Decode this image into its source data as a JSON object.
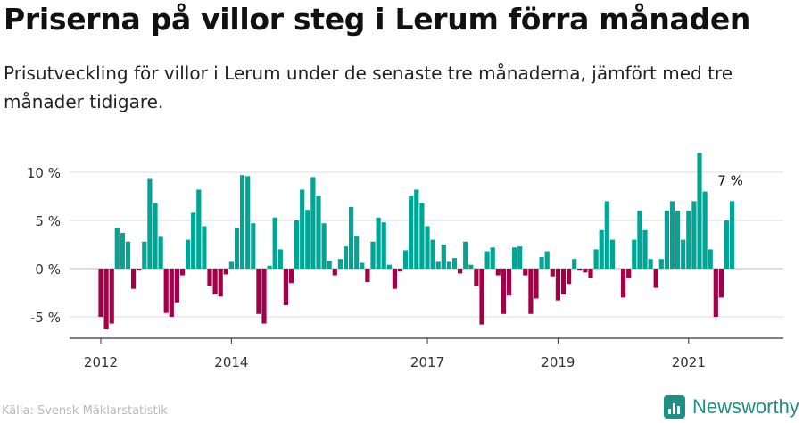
{
  "title": "Priserna på villor steg i Lerum förra månaden",
  "subtitle": "Prisutveckling för villor i Lerum under de senaste tre månaderna, jämfört med tre månader tidigare.",
  "source": "Källa: Svensk Mäklarstatistik",
  "brand": {
    "name": "Newsworthy",
    "logo_icon": "newsworthy-logo-icon"
  },
  "colors": {
    "positive": "#00a595",
    "negative": "#a3004a",
    "grid": "#dddddd",
    "axis": "#333333"
  },
  "chart_data": {
    "type": "bar",
    "title": "",
    "xlabel": "",
    "ylabel": "",
    "ylim": [
      -7,
      12.5
    ],
    "yticks": [
      -5,
      0,
      5,
      10
    ],
    "ytick_labels": [
      "-5 %",
      "0 %",
      "5 %",
      "10 %"
    ],
    "xticks": [
      {
        "label": "2012",
        "index": 0
      },
      {
        "label": "2014",
        "index": 24
      },
      {
        "label": "2017",
        "index": 60
      },
      {
        "label": "2019",
        "index": 84
      },
      {
        "label": "2021",
        "index": 108
      }
    ],
    "grid": true,
    "start_month": "2012-01",
    "last_value_label": "7 %",
    "values": [
      -5.0,
      -6.3,
      -5.7,
      4.2,
      3.7,
      2.8,
      -2.1,
      -0.2,
      2.8,
      9.3,
      6.8,
      3.3,
      -4.6,
      -5.0,
      -3.5,
      -0.7,
      3.0,
      5.8,
      8.2,
      4.4,
      -1.8,
      -2.7,
      -2.9,
      -0.6,
      0.7,
      4.2,
      9.7,
      9.6,
      4.7,
      -4.7,
      -5.7,
      0.3,
      5.3,
      2.0,
      -3.8,
      -1.5,
      5.0,
      8.2,
      6.1,
      9.5,
      7.5,
      4.7,
      0.8,
      -0.7,
      1.0,
      2.3,
      6.4,
      3.4,
      0.6,
      -1.4,
      2.8,
      5.3,
      4.8,
      0.4,
      -2.1,
      -0.3,
      1.9,
      7.5,
      8.2,
      6.8,
      4.4,
      3.0,
      0.7,
      2.5,
      0.7,
      1.1,
      -0.5,
      2.8,
      0.4,
      -1.8,
      -5.8,
      1.8,
      2.2,
      -0.7,
      -4.7,
      -2.8,
      2.2,
      2.3,
      -0.7,
      -4.7,
      -3.1,
      1.2,
      1.8,
      -0.8,
      -3.3,
      -2.7,
      -1.6,
      1.0,
      -0.2,
      -0.4,
      -1.0,
      2.0,
      4.0,
      7.0,
      3.0,
      0.0,
      -3.0,
      -1.0,
      3.0,
      6.0,
      4.0,
      1.0,
      -2.0,
      1.0,
      6.0,
      7.0,
      6.0,
      3.0,
      6.0,
      7.0,
      12.0,
      8.0,
      2.0,
      -5.0,
      -3.0,
      5.0,
      7.0
    ]
  }
}
